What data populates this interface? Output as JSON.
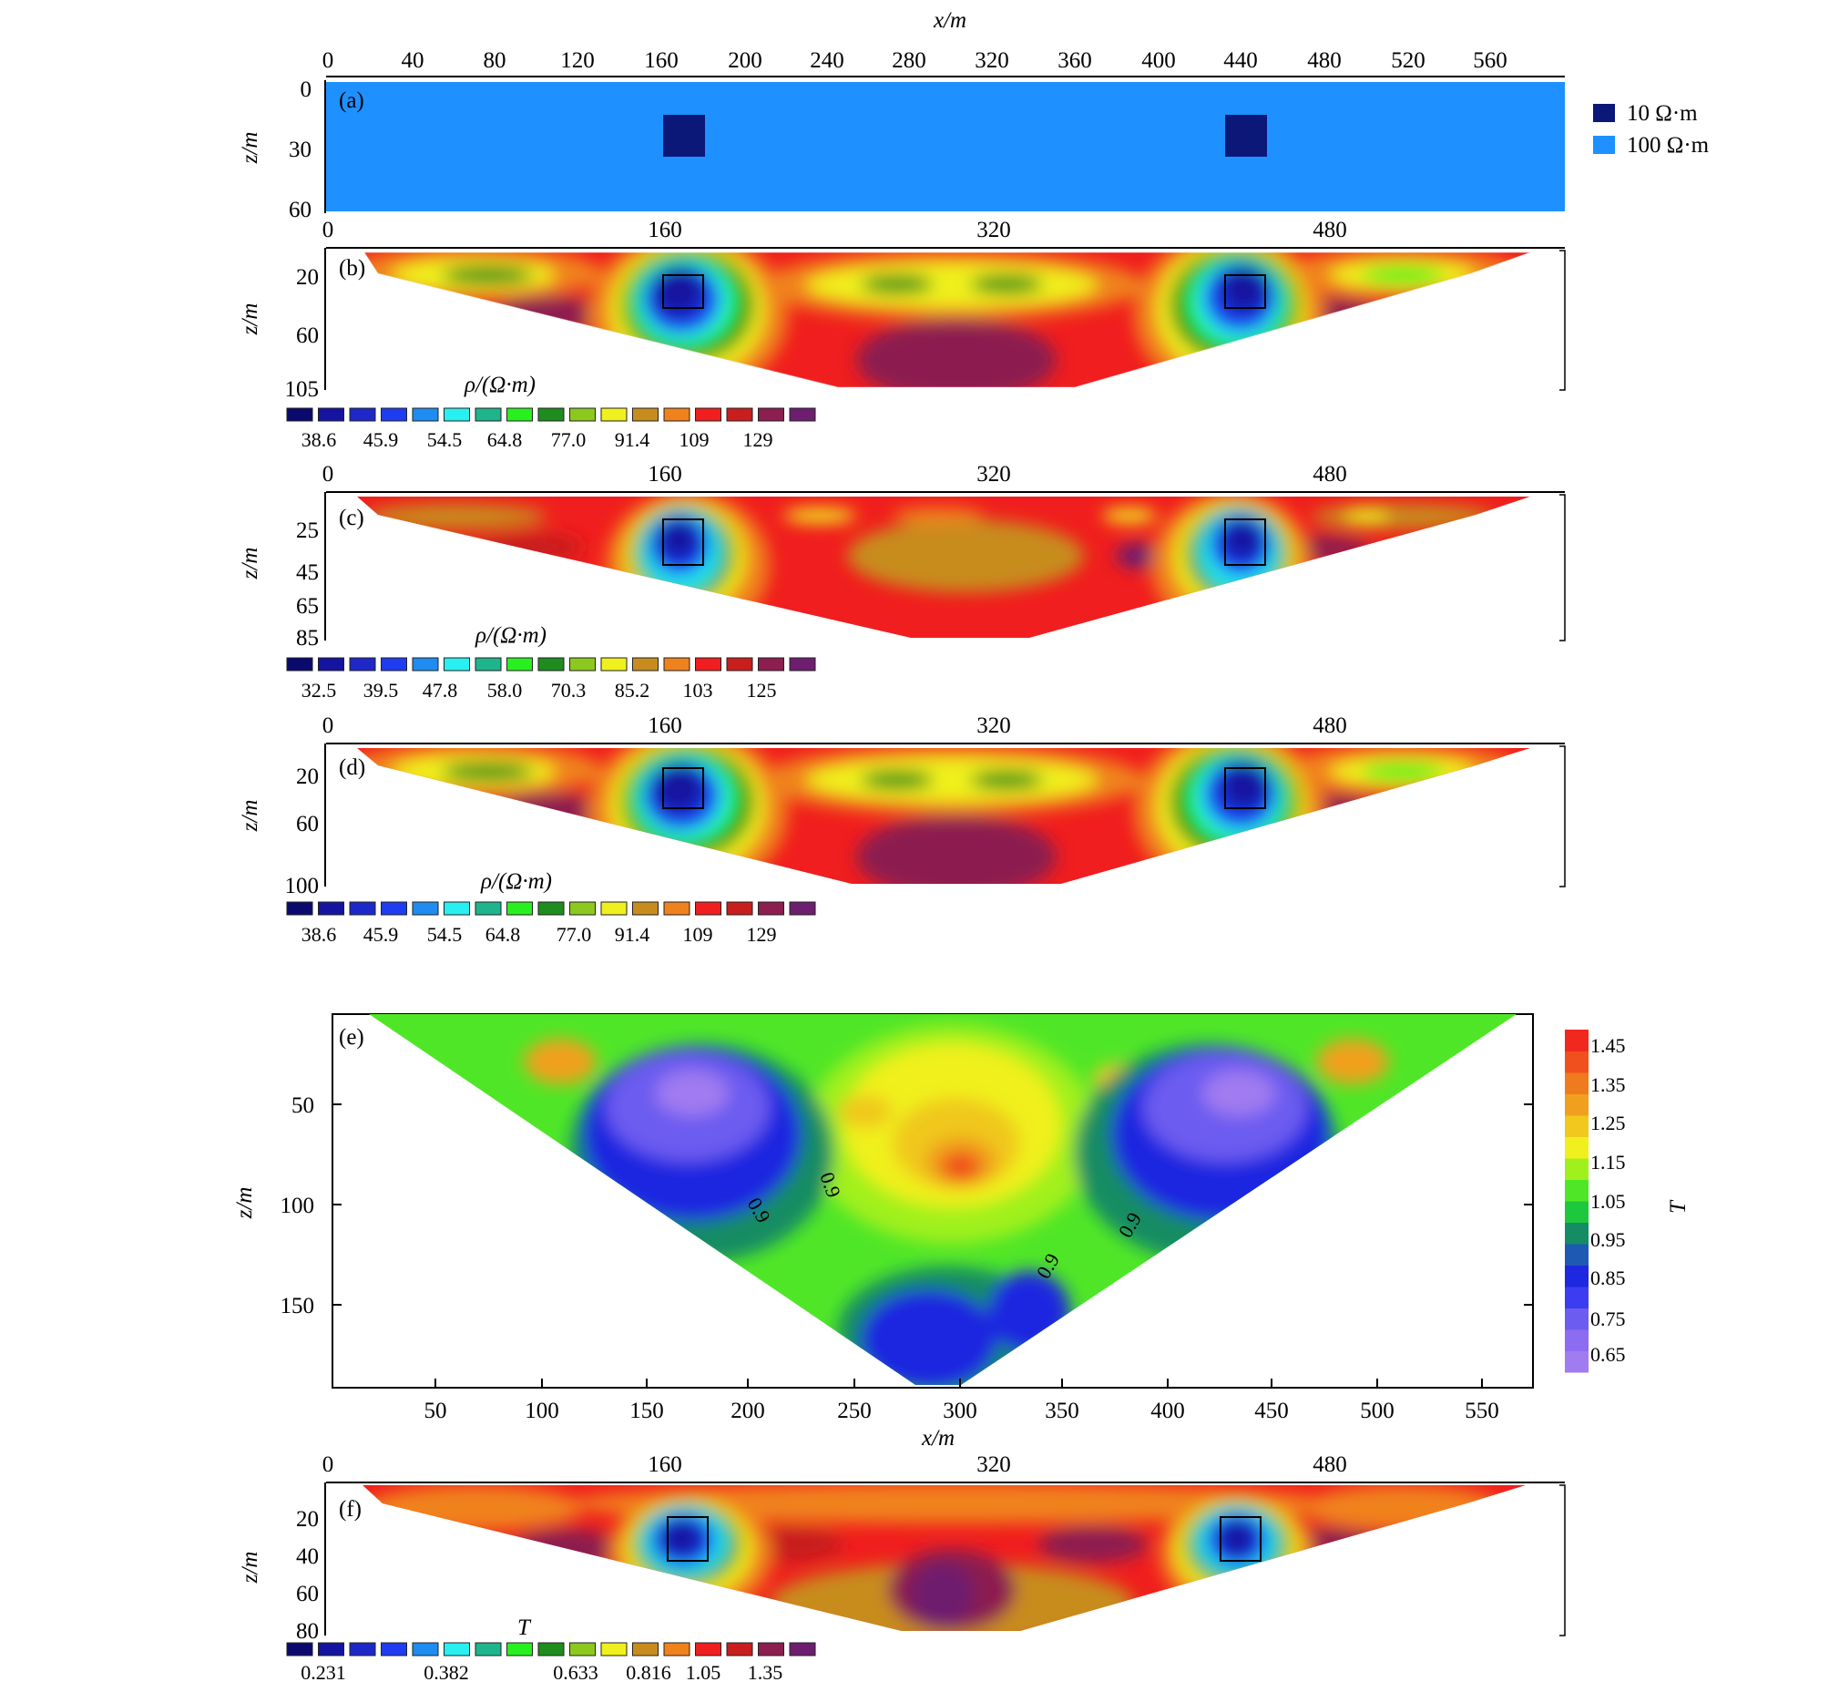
{
  "figure": {
    "x_axis_label": "x/m",
    "z_axis_label": "z/m",
    "colors": {
      "model_body": "#0b1877",
      "model_background": "#1e90ff",
      "axis": "#000000"
    },
    "rho_palette": [
      "#0a0a6e",
      "#1414a0",
      "#1e28c8",
      "#1e3cf0",
      "#1e8cf0",
      "#28f0f0",
      "#1eb48c",
      "#28f01e",
      "#1e8c1e",
      "#8cc81e",
      "#f0f01e",
      "#c88c1e",
      "#f0821e",
      "#f01e1e",
      "#c81e1e",
      "#8c1e50",
      "#6e1e6e"
    ],
    "t_palette": [
      "#a07cf0",
      "#8c6cf0",
      "#6c5cf0",
      "#3c3cf0",
      "#1e28e0",
      "#1e5ab4",
      "#148c64",
      "#1ec83c",
      "#50e628",
      "#a0f01e",
      "#f0f01e",
      "#f0c81e",
      "#f0a01e",
      "#f07a1e",
      "#f0501e",
      "#f0281e"
    ]
  },
  "panels": {
    "a": {
      "label": "(a)",
      "x_ticks": [
        "0",
        "40",
        "80",
        "120",
        "160",
        "200",
        "240",
        "280",
        "320",
        "360",
        "400",
        "440",
        "480",
        "520",
        "560"
      ],
      "z_ticks": [
        "0",
        "30",
        "60"
      ],
      "legend": [
        {
          "label": "10 Ω·m",
          "color": "#0b1877"
        },
        {
          "label": "100 Ω·m",
          "color": "#1e90ff"
        }
      ]
    },
    "b": {
      "label": "(b)",
      "x_ticks": [
        "0",
        "160",
        "320",
        "480"
      ],
      "z_ticks": [
        "20",
        "60",
        "105"
      ],
      "colorbar_title": "ρ/(Ω·m)",
      "colorbar_labels": [
        "38.6",
        "45.9",
        "54.5",
        "64.8",
        "77.0",
        "91.4",
        "109",
        "129"
      ]
    },
    "c": {
      "label": "(c)",
      "x_ticks": [
        "0",
        "160",
        "320",
        "480"
      ],
      "z_ticks": [
        "25",
        "45",
        "65",
        "85"
      ],
      "colorbar_title": "ρ/(Ω·m)",
      "colorbar_labels": [
        "32.5",
        "39.5",
        "47.8",
        "58.0",
        "70.3",
        "85.2",
        "103",
        "125"
      ]
    },
    "d": {
      "label": "(d)",
      "x_ticks": [
        "0",
        "160",
        "320",
        "480"
      ],
      "z_ticks": [
        "20",
        "60",
        "100"
      ],
      "colorbar_title": "ρ/(Ω·m)",
      "colorbar_labels": [
        "38.6",
        "45.9",
        "54.5",
        "64.8",
        "77.0",
        "91.4",
        "109",
        "129"
      ]
    },
    "e": {
      "label": "(e)",
      "x_ticks": [
        "50",
        "100",
        "150",
        "200",
        "250",
        "300",
        "350",
        "400",
        "450",
        "500",
        "550"
      ],
      "z_ticks": [
        "50",
        "100",
        "150"
      ],
      "colorbar_title": "T",
      "colorbar_labels": [
        "1.45",
        "1.35",
        "1.25",
        "1.15",
        "1.05",
        "0.95",
        "0.85",
        "0.75",
        "0.65"
      ],
      "contour_label": "0.9"
    },
    "f": {
      "label": "(f)",
      "x_ticks": [
        "0",
        "160",
        "320",
        "480"
      ],
      "z_ticks": [
        "20",
        "40",
        "60",
        "80"
      ],
      "colorbar_title": "T",
      "colorbar_labels": [
        "0.231",
        "0.382",
        "0.633",
        "0.816",
        "1.05",
        "1.35"
      ]
    }
  }
}
